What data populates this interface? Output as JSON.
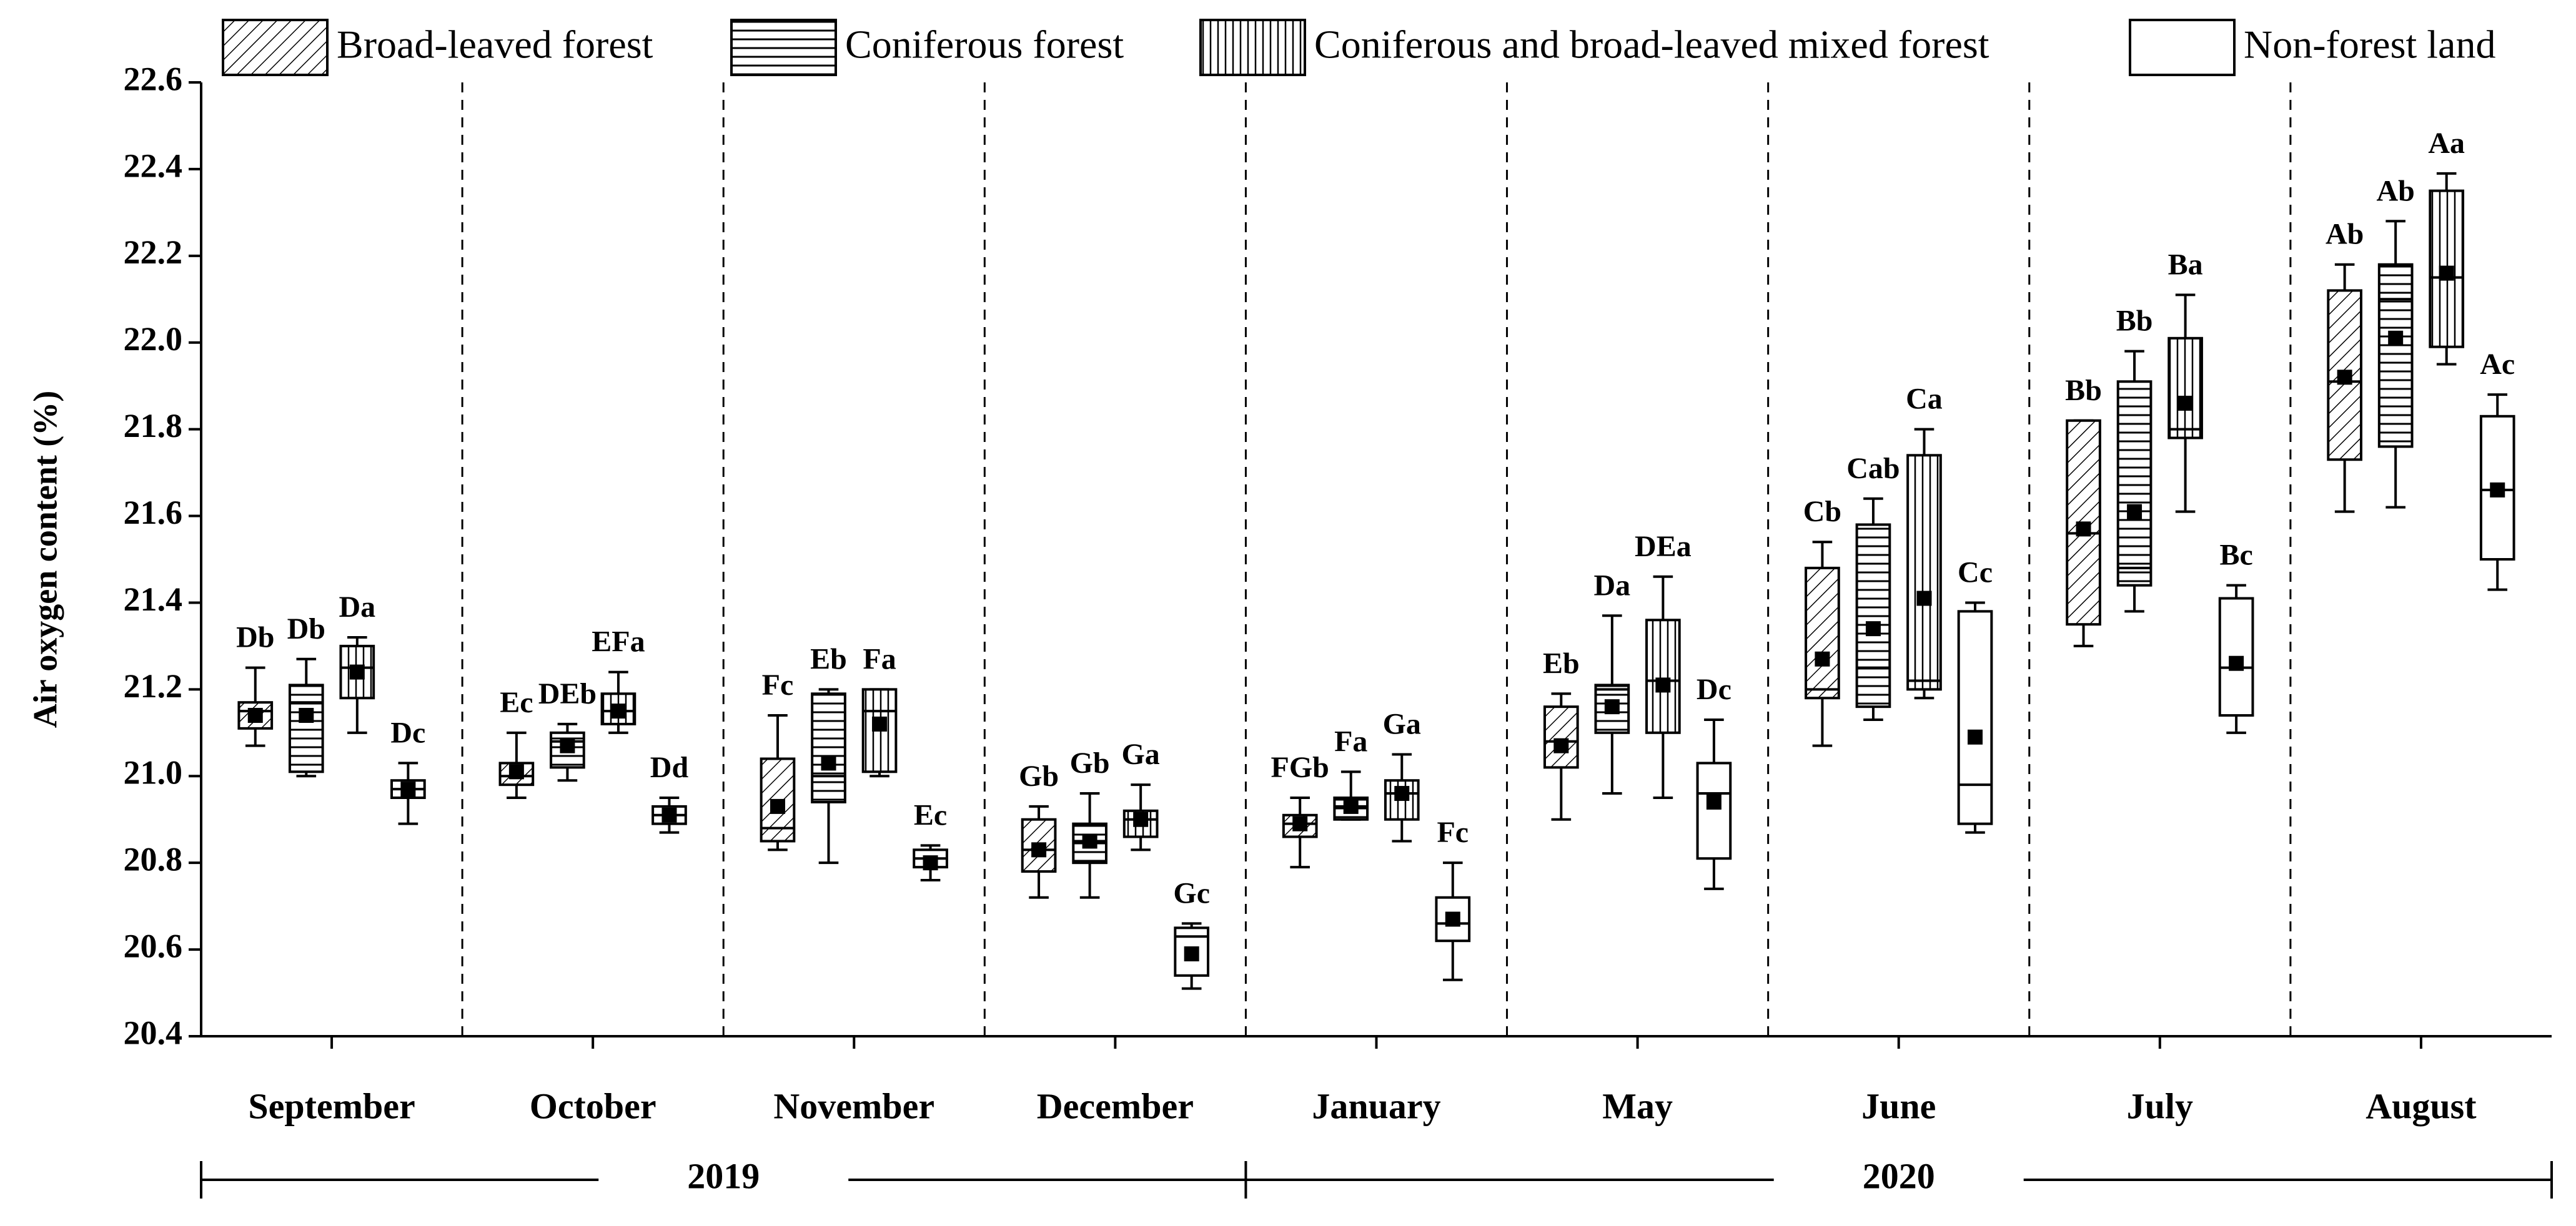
{
  "chart_data": {
    "type": "box",
    "y_label": "Air oxygen content (%)",
    "categories": [
      "September",
      "October",
      "November",
      "December",
      "January",
      "May",
      "June",
      "July",
      "August"
    ],
    "year_groups": [
      {
        "label": "2019",
        "count": 4
      },
      {
        "label": "2020",
        "count": 5
      }
    ],
    "ylim": [
      20.4,
      22.6
    ],
    "yticks": [
      {
        "value": 20.4,
        "label": "20.4"
      },
      {
        "value": 20.6,
        "label": "20.6"
      },
      {
        "value": 20.8,
        "label": "20.8"
      },
      {
        "value": 21.0,
        "label": "21.0"
      },
      {
        "value": 21.2,
        "label": "21.2"
      },
      {
        "value": 21.4,
        "label": "21.4"
      },
      {
        "value": 21.6,
        "label": "21.6"
      },
      {
        "value": 21.8,
        "label": "21.8"
      },
      {
        "value": 22.0,
        "label": "22.0"
      },
      {
        "value": 22.2,
        "label": "22.2"
      },
      {
        "value": 22.4,
        "label": "22.4"
      },
      {
        "value": 22.6,
        "label": "22.6"
      }
    ],
    "series": [
      {
        "name": "Broad-leaved forest",
        "pattern": "diagonal",
        "min": [
          21.07,
          20.95,
          20.83,
          20.72,
          20.79,
          20.9,
          21.07,
          21.3,
          21.61
        ],
        "q1": [
          21.11,
          20.98,
          20.85,
          20.78,
          20.86,
          21.02,
          21.18,
          21.35,
          21.73
        ],
        "median": [
          21.15,
          21.0,
          20.88,
          20.83,
          20.89,
          21.08,
          21.2,
          21.56,
          21.91
        ],
        "q3": [
          21.17,
          21.03,
          21.04,
          20.9,
          20.91,
          21.16,
          21.48,
          21.82,
          22.12
        ],
        "max": [
          21.25,
          21.1,
          21.14,
          20.93,
          20.95,
          21.19,
          21.54,
          21.82,
          22.18
        ],
        "mean": [
          21.14,
          21.01,
          20.93,
          20.83,
          20.89,
          21.07,
          21.27,
          21.57,
          21.92
        ],
        "labels": [
          "Db",
          "Ec",
          "Fc",
          "Gb",
          "FGb",
          "Eb",
          "Cb",
          "Bb",
          "Ab"
        ]
      },
      {
        "name": "Coniferous forest",
        "pattern": "horizontal",
        "min": [
          21.0,
          20.99,
          20.8,
          20.72,
          20.9,
          20.96,
          21.13,
          21.38,
          21.62
        ],
        "q1": [
          21.01,
          21.02,
          20.94,
          20.8,
          20.9,
          21.1,
          21.16,
          21.44,
          21.76
        ],
        "median": [
          21.17,
          21.08,
          21.0,
          20.85,
          20.93,
          21.2,
          21.25,
          21.48,
          22.1
        ],
        "q3": [
          21.21,
          21.1,
          21.19,
          20.89,
          20.95,
          21.21,
          21.58,
          21.91,
          22.18
        ],
        "max": [
          21.27,
          21.12,
          21.2,
          20.96,
          21.01,
          21.37,
          21.64,
          21.98,
          22.28
        ],
        "mean": [
          21.14,
          21.07,
          21.03,
          20.85,
          20.93,
          21.16,
          21.34,
          21.61,
          22.01
        ],
        "labels": [
          "Db",
          "DEb",
          "Eb",
          "Gb",
          "Fa",
          "Da",
          "Cab",
          "Bb",
          "Ab"
        ]
      },
      {
        "name": "Coniferous and broad-leaved mixed forest",
        "pattern": "vertical",
        "min": [
          21.1,
          21.1,
          21.0,
          20.83,
          20.85,
          20.95,
          21.18,
          21.61,
          21.95
        ],
        "q1": [
          21.18,
          21.12,
          21.01,
          20.86,
          20.9,
          21.1,
          21.2,
          21.78,
          21.99
        ],
        "median": [
          21.25,
          21.15,
          21.15,
          20.9,
          20.96,
          21.22,
          21.22,
          21.8,
          22.15
        ],
        "q3": [
          21.3,
          21.19,
          21.2,
          20.92,
          20.99,
          21.36,
          21.74,
          22.01,
          22.35
        ],
        "max": [
          21.32,
          21.24,
          21.2,
          20.98,
          21.05,
          21.46,
          21.8,
          22.11,
          22.39
        ],
        "mean": [
          21.24,
          21.15,
          21.12,
          20.9,
          20.96,
          21.21,
          21.41,
          21.86,
          22.16
        ],
        "labels": [
          "Da",
          "EFa",
          "Fa",
          "Ga",
          "Ga",
          "DEa",
          "Ca",
          "Ba",
          "Aa"
        ]
      },
      {
        "name": "Non-forest land",
        "pattern": "none",
        "min": [
          20.89,
          20.87,
          20.76,
          20.51,
          20.53,
          20.74,
          20.87,
          21.1,
          21.43
        ],
        "q1": [
          20.95,
          20.89,
          20.79,
          20.54,
          20.62,
          20.81,
          20.89,
          21.14,
          21.5
        ],
        "median": [
          20.97,
          20.91,
          20.81,
          20.63,
          20.66,
          20.96,
          20.98,
          21.25,
          21.66
        ],
        "q3": [
          20.99,
          20.93,
          20.83,
          20.65,
          20.72,
          21.03,
          21.38,
          21.41,
          21.83
        ],
        "max": [
          21.03,
          20.95,
          20.84,
          20.66,
          20.8,
          21.13,
          21.4,
          21.44,
          21.88
        ],
        "mean": [
          20.97,
          20.91,
          20.8,
          20.59,
          20.67,
          20.94,
          21.09,
          21.26,
          21.66
        ],
        "labels": [
          "Dc",
          "Dd",
          "Ec",
          "Gc",
          "Fc",
          "Dc",
          "Cc",
          "Bc",
          "Ac"
        ]
      }
    ]
  }
}
